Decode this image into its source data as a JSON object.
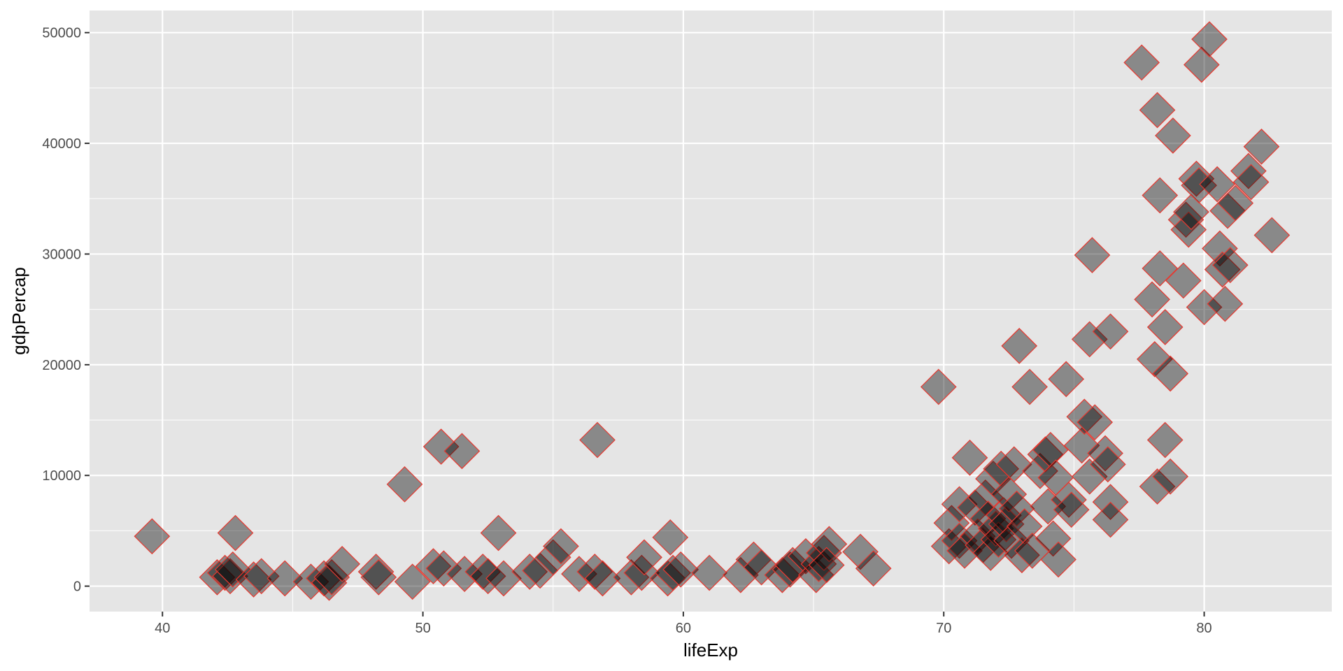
{
  "chart_data": {
    "type": "scatter",
    "title": "",
    "xlabel": "lifeExp",
    "ylabel": "gdpPercap",
    "xlim": [
      37.2,
      84.9
    ],
    "ylim": [
      -2300,
      52000
    ],
    "x_ticks": [
      40,
      50,
      60,
      70,
      80
    ],
    "y_ticks": [
      0,
      10000,
      20000,
      30000,
      40000,
      50000
    ],
    "grid": true,
    "panel_background": "#e5e5e5",
    "grid_color": "#ffffff",
    "point_shape": "diamond",
    "point_fill": "#000000",
    "point_fill_opacity": 0.4,
    "point_stroke": "#e8382f",
    "points": [
      {
        "x": 39.6,
        "y": 4500
      },
      {
        "x": 42.1,
        "y": 800
      },
      {
        "x": 42.4,
        "y": 1200
      },
      {
        "x": 42.6,
        "y": 900
      },
      {
        "x": 42.7,
        "y": 1500
      },
      {
        "x": 42.8,
        "y": 4800
      },
      {
        "x": 43.5,
        "y": 600
      },
      {
        "x": 43.8,
        "y": 900
      },
      {
        "x": 44.7,
        "y": 700
      },
      {
        "x": 45.7,
        "y": 400
      },
      {
        "x": 46.2,
        "y": 700
      },
      {
        "x": 46.4,
        "y": 300
      },
      {
        "x": 46.5,
        "y": 800
      },
      {
        "x": 46.9,
        "y": 2000
      },
      {
        "x": 48.2,
        "y": 1300
      },
      {
        "x": 48.3,
        "y": 800
      },
      {
        "x": 49.3,
        "y": 9200
      },
      {
        "x": 49.6,
        "y": 400
      },
      {
        "x": 50.4,
        "y": 1800
      },
      {
        "x": 50.7,
        "y": 12600
      },
      {
        "x": 50.8,
        "y": 1600
      },
      {
        "x": 51.5,
        "y": 12200
      },
      {
        "x": 51.6,
        "y": 1100
      },
      {
        "x": 52.3,
        "y": 1300
      },
      {
        "x": 52.5,
        "y": 900
      },
      {
        "x": 52.9,
        "y": 4800
      },
      {
        "x": 53.1,
        "y": 700
      },
      {
        "x": 54.1,
        "y": 1300
      },
      {
        "x": 54.5,
        "y": 1400
      },
      {
        "x": 55.0,
        "y": 2600
      },
      {
        "x": 55.3,
        "y": 3600
      },
      {
        "x": 56.0,
        "y": 1100
      },
      {
        "x": 56.6,
        "y": 1300
      },
      {
        "x": 56.7,
        "y": 13200
      },
      {
        "x": 56.9,
        "y": 700
      },
      {
        "x": 58.0,
        "y": 800
      },
      {
        "x": 58.4,
        "y": 1200
      },
      {
        "x": 58.5,
        "y": 2600
      },
      {
        "x": 59.4,
        "y": 700
      },
      {
        "x": 59.5,
        "y": 4400
      },
      {
        "x": 59.6,
        "y": 1200
      },
      {
        "x": 59.9,
        "y": 1500
      },
      {
        "x": 61.0,
        "y": 1200
      },
      {
        "x": 62.2,
        "y": 1000
      },
      {
        "x": 62.7,
        "y": 2400
      },
      {
        "x": 63.0,
        "y": 1700
      },
      {
        "x": 63.8,
        "y": 1000
      },
      {
        "x": 64.1,
        "y": 1500
      },
      {
        "x": 64.2,
        "y": 1900
      },
      {
        "x": 64.7,
        "y": 2700
      },
      {
        "x": 65.1,
        "y": 1000
      },
      {
        "x": 65.2,
        "y": 2000
      },
      {
        "x": 65.4,
        "y": 3000
      },
      {
        "x": 65.6,
        "y": 3800
      },
      {
        "x": 65.5,
        "y": 1900
      },
      {
        "x": 66.8,
        "y": 3100
      },
      {
        "x": 67.3,
        "y": 1600
      },
      {
        "x": 69.8,
        "y": 18000
      },
      {
        "x": 70.2,
        "y": 3600
      },
      {
        "x": 70.3,
        "y": 5700
      },
      {
        "x": 70.6,
        "y": 7400
      },
      {
        "x": 70.6,
        "y": 4100
      },
      {
        "x": 70.8,
        "y": 3200
      },
      {
        "x": 71.0,
        "y": 11600
      },
      {
        "x": 71.2,
        "y": 7100
      },
      {
        "x": 71.3,
        "y": 4500
      },
      {
        "x": 71.5,
        "y": 3700
      },
      {
        "x": 71.6,
        "y": 8000
      },
      {
        "x": 71.7,
        "y": 6100
      },
      {
        "x": 71.8,
        "y": 3000
      },
      {
        "x": 71.9,
        "y": 9700
      },
      {
        "x": 72.0,
        "y": 5200
      },
      {
        "x": 72.1,
        "y": 4200
      },
      {
        "x": 72.2,
        "y": 10600
      },
      {
        "x": 72.3,
        "y": 6400
      },
      {
        "x": 72.4,
        "y": 5600
      },
      {
        "x": 72.5,
        "y": 8300
      },
      {
        "x": 72.6,
        "y": 4100
      },
      {
        "x": 72.7,
        "y": 11000
      },
      {
        "x": 72.8,
        "y": 7000
      },
      {
        "x": 72.9,
        "y": 21700
      },
      {
        "x": 73.0,
        "y": 2800
      },
      {
        "x": 73.1,
        "y": 5400
      },
      {
        "x": 73.3,
        "y": 18000
      },
      {
        "x": 73.4,
        "y": 3200
      },
      {
        "x": 73.7,
        "y": 10400
      },
      {
        "x": 73.9,
        "y": 11900
      },
      {
        "x": 74.0,
        "y": 7200
      },
      {
        "x": 74.1,
        "y": 12300
      },
      {
        "x": 74.2,
        "y": 4300
      },
      {
        "x": 74.3,
        "y": 9800
      },
      {
        "x": 74.4,
        "y": 2400
      },
      {
        "x": 74.7,
        "y": 18700
      },
      {
        "x": 74.8,
        "y": 7800
      },
      {
        "x": 74.9,
        "y": 6900
      },
      {
        "x": 75.3,
        "y": 12700
      },
      {
        "x": 75.4,
        "y": 15300
      },
      {
        "x": 75.6,
        "y": 9900
      },
      {
        "x": 75.6,
        "y": 22300
      },
      {
        "x": 75.7,
        "y": 29900
      },
      {
        "x": 75.8,
        "y": 14800
      },
      {
        "x": 76.2,
        "y": 12000
      },
      {
        "x": 76.3,
        "y": 11000
      },
      {
        "x": 76.4,
        "y": 23000
      },
      {
        "x": 76.4,
        "y": 7600
      },
      {
        "x": 76.4,
        "y": 6000
      },
      {
        "x": 77.6,
        "y": 47300
      },
      {
        "x": 78.0,
        "y": 25900
      },
      {
        "x": 78.1,
        "y": 20500
      },
      {
        "x": 78.2,
        "y": 43000
      },
      {
        "x": 78.3,
        "y": 35300
      },
      {
        "x": 78.3,
        "y": 28700
      },
      {
        "x": 78.2,
        "y": 9000
      },
      {
        "x": 78.5,
        "y": 23400
      },
      {
        "x": 78.5,
        "y": 13200
      },
      {
        "x": 78.7,
        "y": 19200
      },
      {
        "x": 78.7,
        "y": 9900
      },
      {
        "x": 78.8,
        "y": 40700
      },
      {
        "x": 79.2,
        "y": 27600
      },
      {
        "x": 79.3,
        "y": 33100
      },
      {
        "x": 79.4,
        "y": 32200
      },
      {
        "x": 79.5,
        "y": 33800
      },
      {
        "x": 79.7,
        "y": 36800
      },
      {
        "x": 79.8,
        "y": 36200
      },
      {
        "x": 79.9,
        "y": 47100
      },
      {
        "x": 80.0,
        "y": 25200
      },
      {
        "x": 80.2,
        "y": 49400
      },
      {
        "x": 80.5,
        "y": 36300
      },
      {
        "x": 80.6,
        "y": 30500
      },
      {
        "x": 80.7,
        "y": 28600
      },
      {
        "x": 80.8,
        "y": 25500
      },
      {
        "x": 80.9,
        "y": 33900
      },
      {
        "x": 81.0,
        "y": 29000
      },
      {
        "x": 81.2,
        "y": 34600
      },
      {
        "x": 81.7,
        "y": 37500
      },
      {
        "x": 81.8,
        "y": 36500
      },
      {
        "x": 82.2,
        "y": 39700
      },
      {
        "x": 82.6,
        "y": 31700
      }
    ]
  }
}
